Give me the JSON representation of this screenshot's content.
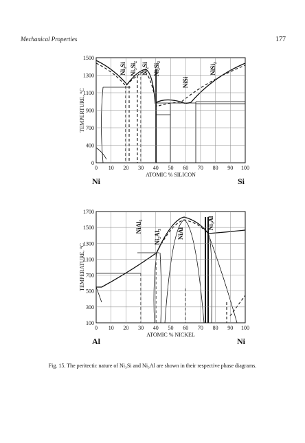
{
  "header": {
    "title": "Mechanical Properties",
    "page": "177"
  },
  "figures": [
    {
      "y_label": "TEMPERTURE, °C",
      "x_label": "ATOMIC % SILICON",
      "left_element": "Ni",
      "right_element": "Si",
      "yticks": [
        "1500",
        "1300",
        "1100",
        "900",
        "700",
        "400",
        "0"
      ],
      "xticks": [
        "0",
        "10",
        "20",
        "30",
        "40",
        "50",
        "60",
        "70",
        "80",
        "90",
        "100"
      ],
      "phases": [
        "Ni₃Si",
        "Ni₅Si₂",
        "Ni₂Si",
        "Ni₃Si₂",
        "NiSi",
        "NiSi₂"
      ]
    },
    {
      "y_label": "TEMPERATURE, °C",
      "x_label": "ATOMIC % NICKEL",
      "left_element": "Al",
      "right_element": "Ni",
      "yticks": [
        "1700",
        "1500",
        "1300",
        "1100",
        "700",
        "500",
        "300",
        "100"
      ],
      "xticks": [
        "0",
        "10",
        "20",
        "30",
        "40",
        "50",
        "60",
        "70",
        "80",
        "90",
        "100"
      ],
      "phases": [
        "NiAl₃",
        "Ni₂Al₃",
        "NiAl",
        "Ni₃Al"
      ]
    }
  ],
  "caption": "Fig. 15. The peritectic nature of Ni₃Si and Ni₃Al are shown in their respective phase diagrams."
}
